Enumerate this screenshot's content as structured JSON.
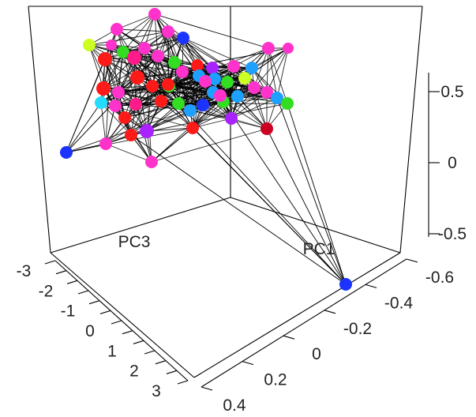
{
  "chart_data": {
    "type": "scatter",
    "title": "",
    "axes": {
      "pc1": {
        "label": "PC1",
        "ticks": [
          "-0.6",
          "-0.4",
          "-0.2",
          "0",
          "0.2",
          "0.4"
        ]
      },
      "pc3": {
        "label": "PC3",
        "ticks": [
          "-3",
          "-2",
          "-1",
          "0",
          "1",
          "2",
          "3"
        ]
      },
      "vertical": {
        "label": "",
        "ticks": [
          "0.5",
          "0",
          "-0.5"
        ]
      }
    },
    "grid": false,
    "legend": "none",
    "edges_color": "#000000",
    "colors": {
      "red": "#ff1a1a",
      "magenta": "#ff33cc",
      "pink": "#ff1a8c",
      "green": "#33dd22",
      "yellow_green": "#ccff22",
      "blue": "#1a33ff",
      "sky": "#1ea0ff",
      "cyan": "#22ddff",
      "purple": "#aa22ff",
      "dark_red": "#cc0022"
    },
    "points": [
      {
        "c": "magenta",
        "r": 8
      },
      {
        "c": "magenta",
        "r": 8
      },
      {
        "c": "magenta",
        "r": 8
      },
      {
        "c": "blue",
        "r": 8
      },
      {
        "c": "yellow_green",
        "r": 8
      },
      {
        "c": "magenta",
        "r": 7
      },
      {
        "c": "green",
        "r": 8
      },
      {
        "c": "magenta",
        "r": 8
      },
      {
        "c": "magenta",
        "r": 8
      },
      {
        "c": "magenta",
        "r": 7
      },
      {
        "c": "red",
        "r": 9
      },
      {
        "c": "pink",
        "r": 9
      },
      {
        "c": "magenta",
        "r": 8
      },
      {
        "c": "green",
        "r": 8
      },
      {
        "c": "red",
        "r": 8
      },
      {
        "c": "purple",
        "r": 8
      },
      {
        "c": "magenta",
        "r": 8
      },
      {
        "c": "sky",
        "r": 8
      },
      {
        "c": "yellow_green",
        "r": 8
      },
      {
        "c": "green",
        "r": 8
      },
      {
        "c": "sky",
        "r": 8
      },
      {
        "c": "sky",
        "r": 8
      },
      {
        "c": "magenta",
        "r": 8
      },
      {
        "c": "red",
        "r": 9
      },
      {
        "c": "red",
        "r": 9
      },
      {
        "c": "magenta",
        "r": 8
      },
      {
        "c": "red",
        "r": 8
      },
      {
        "c": "green",
        "r": 8
      },
      {
        "c": "cyan",
        "r": 8
      },
      {
        "c": "magenta",
        "r": 8
      },
      {
        "c": "pink",
        "r": 8
      },
      {
        "c": "red",
        "r": 8
      },
      {
        "c": "green",
        "r": 8
      },
      {
        "c": "sky",
        "r": 8
      },
      {
        "c": "blue",
        "r": 8
      },
      {
        "c": "sky",
        "r": 8
      },
      {
        "c": "green",
        "r": 8
      },
      {
        "c": "sky",
        "r": 8
      },
      {
        "c": "magenta",
        "r": 8
      },
      {
        "c": "magenta",
        "r": 8
      },
      {
        "c": "purple",
        "r": 9
      },
      {
        "c": "red",
        "r": 8
      },
      {
        "c": "red",
        "r": 8
      },
      {
        "c": "magenta",
        "r": 8
      },
      {
        "c": "purple",
        "r": 8
      },
      {
        "c": "red",
        "r": 8
      },
      {
        "c": "blue",
        "r": 8
      },
      {
        "c": "magenta",
        "r": 8
      },
      {
        "c": "sky",
        "r": 8
      },
      {
        "c": "green",
        "r": 8
      },
      {
        "c": "dark_red",
        "r": 8
      },
      {
        "c": "magenta",
        "r": 8
      },
      {
        "c": "red",
        "r": 8
      },
      {
        "c": "blue",
        "r": 8
      },
      {
        "c": "magenta",
        "r": 8
      }
    ]
  }
}
